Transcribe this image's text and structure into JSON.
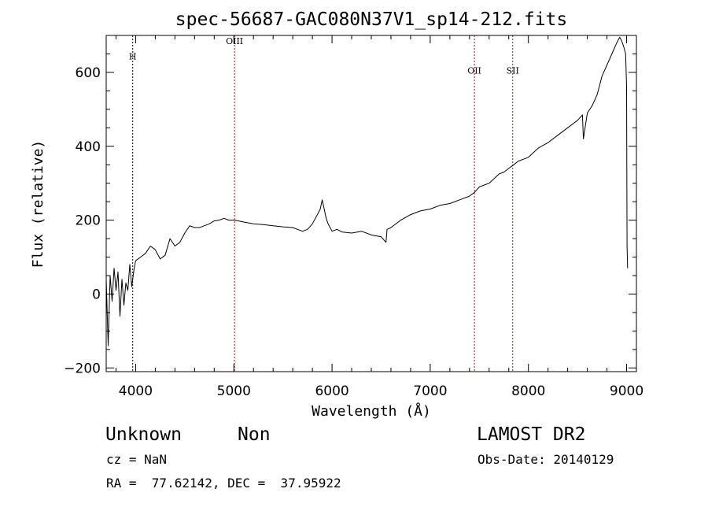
{
  "chart_data": {
    "type": "line",
    "title": "spec-56687-GAC080N37V1_sp14-212.fits",
    "xlabel": "Wavelength (Å)",
    "ylabel": "Flux (relative)",
    "xlim": [
      3700,
      9100
    ],
    "ylim": [
      -210,
      700
    ],
    "x_ticks": [
      4000,
      5000,
      6000,
      7000,
      8000,
      9000
    ],
    "y_ticks": [
      -200,
      0,
      200,
      400,
      600
    ],
    "grid": false,
    "series": [
      {
        "x": [
          3700,
          3720,
          3740,
          3760,
          3780,
          3800,
          3820,
          3840,
          3860,
          3880,
          3900,
          3920,
          3940,
          3960,
          3980,
          4000,
          4050,
          4100,
          4150,
          4200,
          4250,
          4300,
          4350,
          4400,
          4450,
          4500,
          4550,
          4600,
          4650,
          4700,
          4750,
          4800,
          4850,
          4900,
          4950,
          5000,
          5050,
          5100,
          5200,
          5300,
          5400,
          5500,
          5600,
          5700,
          5750,
          5800,
          5850,
          5880,
          5900,
          5920,
          5940,
          5960,
          5980,
          6000,
          6050,
          6100,
          6200,
          6300,
          6400,
          6500,
          6550,
          6560,
          6600,
          6700,
          6800,
          6900,
          7000,
          7100,
          7200,
          7300,
          7400,
          7450,
          7500,
          7600,
          7700,
          7750,
          7800,
          7850,
          7900,
          7950,
          8000,
          8100,
          8200,
          8300,
          8400,
          8500,
          8550,
          8560,
          8600,
          8650,
          8700,
          8750,
          8800,
          8850,
          8900,
          8930,
          8950,
          8970,
          8990,
          9000,
          9005,
          9010
        ],
        "y": [
          40,
          -140,
          50,
          -20,
          70,
          10,
          60,
          -60,
          40,
          -30,
          30,
          10,
          80,
          20,
          60,
          90,
          100,
          110,
          130,
          120,
          95,
          105,
          150,
          130,
          140,
          165,
          185,
          180,
          180,
          185,
          190,
          198,
          200,
          205,
          200,
          200,
          198,
          195,
          190,
          188,
          185,
          182,
          180,
          170,
          175,
          190,
          215,
          230,
          255,
          230,
          205,
          190,
          180,
          170,
          175,
          168,
          165,
          170,
          160,
          155,
          140,
          175,
          180,
          200,
          215,
          225,
          230,
          240,
          245,
          255,
          265,
          275,
          290,
          300,
          325,
          330,
          340,
          350,
          360,
          365,
          370,
          395,
          410,
          430,
          450,
          470,
          485,
          420,
          490,
          510,
          540,
          590,
          620,
          650,
          680,
          695,
          685,
          670,
          650,
          560,
          130,
          70
        ]
      }
    ],
    "markers": [
      {
        "label": "H",
        "x": 3970,
        "y": 635,
        "color": "#000000"
      },
      {
        "label": "OIII",
        "x": 5007,
        "y": 677,
        "color": "#cc0000"
      },
      {
        "label": "OII",
        "x": 7450,
        "y": 597,
        "color": "#cc0000"
      },
      {
        "label": "SII",
        "x": 7840,
        "y": 597,
        "color": "#cc0000"
      }
    ]
  },
  "info": {
    "object_class": "Unknown",
    "subclass": "Non",
    "survey": "LAMOST DR2",
    "cz": "cz = NaN",
    "obs_date": "Obs-Date: 20140129",
    "coords": "RA =  77.62142, DEC =  37.95922"
  },
  "colors": {
    "line": "#000000",
    "marker_red": "#cc0000",
    "background": "#ffffff"
  }
}
